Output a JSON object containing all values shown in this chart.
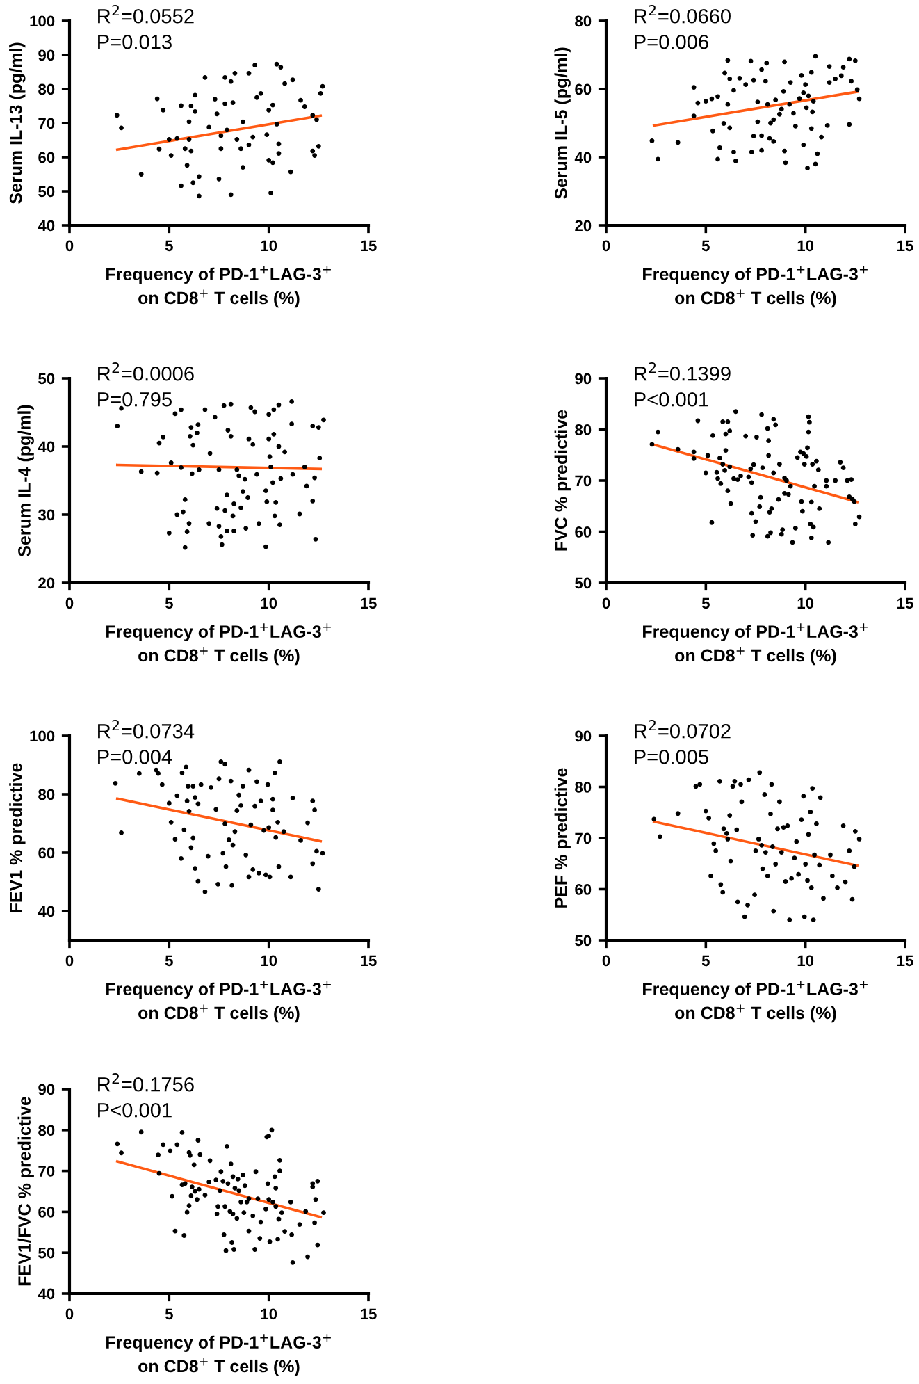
{
  "chart_data": [
    {
      "type": "scatter",
      "ylabel": "Serum IL-13 (pg/ml)",
      "xlabel": "Frequency of PD-1$^{+}$LAG-3$^{+}$\non CD8$^{+}$ T cells (%)",
      "annotations": [
        "R$^{2}$=0.0552",
        "P=0.013"
      ],
      "xlim": [
        0,
        15
      ],
      "xticks": [
        0,
        5,
        10,
        15
      ],
      "ylim": [
        40,
        100
      ],
      "yticks": [
        40,
        50,
        60,
        70,
        80,
        90,
        100
      ],
      "series": [
        {
          "color": "#000000",
          "marker": "circle",
          "x": [
            2.38,
            2.6,
            3.6,
            4.4,
            4.5,
            4.7,
            5.0,
            5.1,
            5.4,
            5.6,
            5.6,
            5.8,
            5.9,
            6.0,
            6.0,
            6.1,
            6.1,
            6.2,
            6.3,
            6.3,
            6.5,
            6.5,
            6.8,
            7.0,
            7.3,
            7.4,
            7.5,
            7.6,
            7.6,
            7.8,
            7.8,
            7.9,
            8.1,
            8.1,
            8.2,
            8.3,
            8.4,
            8.6,
            8.7,
            8.7,
            9.0,
            9.0,
            9.2,
            9.3,
            9.4,
            9.6,
            9.9,
            10.0,
            10.0,
            10.1,
            10.2,
            10.2,
            10.4,
            10.4,
            10.5,
            10.6,
            10.5,
            10.8,
            11.1,
            11.2,
            11.6,
            11.8,
            12.2,
            12.3,
            12.2,
            12.4,
            12.5,
            12.6,
            12.7
          ],
          "values": [
            72.3,
            68.6,
            55,
            77.1,
            62.4,
            73.8,
            65.2,
            60.5,
            65.5,
            75.1,
            51.6,
            62.5,
            57.6,
            70.4,
            65.2,
            61.8,
            75,
            52.5,
            78.2,
            73.4,
            48.6,
            54.3,
            83.4,
            68.8,
            77,
            72.7,
            53.6,
            62.5,
            66.3,
            83.4,
            75.7,
            68,
            82.2,
            49,
            76,
            84.6,
            65.2,
            62.5,
            70.4,
            57,
            63.6,
            84.6,
            65.9,
            87,
            77.5,
            78.7,
            66.6,
            73.8,
            59.1,
            49.5,
            75.3,
            58.4,
            87.3,
            69.7,
            63.9,
            86.4,
            61.1,
            81.6,
            55.7,
            82.7,
            76.7,
            74.8,
            61.8,
            60.5,
            72.3,
            71,
            63.2,
            78.7,
            80.8
          ]
        },
        {
          "type": "line",
          "color": "#ff5a14",
          "x": [
            2.4,
            12.6
          ],
          "values": [
            62.2,
            72.2
          ]
        }
      ]
    },
    {
      "type": "scatter",
      "ylabel": "Serum IL-5 (pg/ml)",
      "xlabel": "Frequency of PD-1$^{+}$LAG-3$^{+}$\non CD8$^{+}$ T cells (%)",
      "annotations": [
        "R$^{2}$=0.0660",
        "P=0.006"
      ],
      "xlim": [
        0,
        15
      ],
      "xticks": [
        0,
        5,
        10,
        15
      ],
      "ylim": [
        20,
        80
      ],
      "yticks": [
        20,
        40,
        60,
        80
      ],
      "series": [
        {
          "color": "#000000",
          "marker": "circle",
          "x": [
            2.3,
            2.6,
            3.6,
            4.4,
            4.4,
            4.6,
            5.0,
            5.3,
            5.35,
            5.6,
            5.6,
            5.7,
            5.9,
            5.95,
            6.1,
            6.1,
            6.2,
            6.2,
            6.4,
            6.4,
            6.5,
            6.7,
            7.0,
            7.26,
            7.3,
            7.4,
            7.4,
            7.6,
            7.6,
            7.8,
            7.8,
            7.8,
            8.0,
            8.05,
            8.1,
            8.2,
            8.25,
            8.4,
            8.4,
            8.5,
            8.7,
            8.8,
            8.9,
            8.95,
            8.95,
            9.0,
            9.2,
            9.25,
            9.4,
            9.5,
            9.7,
            9.8,
            9.9,
            9.9,
            10.0,
            10.05,
            10.1,
            10.15,
            10.3,
            10.3,
            10.35,
            10.4,
            10.5,
            10.5,
            10.6,
            10.8,
            11.1,
            11.2,
            11.2,
            11.5,
            11.8,
            11.9,
            12.2,
            12.2,
            12.3,
            12.5,
            12.6,
            12.7
          ],
          "values": [
            44.8,
            39.4,
            44.3,
            60.5,
            52.1,
            55.9,
            56.4,
            57.1,
            47.7,
            39.4,
            57.8,
            42.8,
            49.9,
            64.7,
            68.4,
            55.5,
            48.6,
            63,
            59.6,
            41.5,
            38.9,
            63.2,
            61.3,
            68.2,
            41.5,
            62.6,
            46.2,
            50.4,
            56.2,
            42,
            46.3,
            65.7,
            62.3,
            67.6,
            55.5,
            45.5,
            50,
            44.6,
            51,
            56.8,
            52.6,
            54.1,
            59.3,
            68,
            41.8,
            38.4,
            55.5,
            61.9,
            52.9,
            49.1,
            57.2,
            64,
            58.9,
            43.6,
            61.3,
            54.5,
            36.8,
            58,
            48.4,
            64.9,
            53.3,
            56.4,
            38,
            69.6,
            41,
            45.9,
            49.3,
            66.6,
            61.9,
            63,
            63.9,
            66.4,
            49.6,
            68.8,
            62.3,
            68.3,
            59.8,
            57.1
          ]
        },
        {
          "type": "line",
          "color": "#ff5a14",
          "x": [
            2.4,
            12.6
          ],
          "values": [
            49.3,
            59.2
          ]
        }
      ]
    },
    {
      "type": "scatter",
      "ylabel": "Serum IL-4 (pg/ml)",
      "xlabel": "Frequency of PD-1$^{+}$LAG-3$^{+}$\non CD8$^{+}$ T cells (%)",
      "annotations": [
        "R$^{2}$=0.0006",
        "P=0.795"
      ],
      "xlim": [
        0,
        15
      ],
      "xticks": [
        0,
        5,
        10,
        15
      ],
      "ylim": [
        20,
        50
      ],
      "yticks": [
        20,
        30,
        40,
        50
      ],
      "series": [
        {
          "color": "#000000",
          "marker": "circle",
          "x": [
            2.4,
            2.6,
            3.6,
            4.4,
            4.5,
            4.7,
            5.0,
            5.1,
            5.3,
            5.4,
            5.6,
            5.6,
            5.7,
            5.8,
            5.8,
            5.9,
            6.0,
            6.05,
            6.1,
            6.15,
            6.2,
            6.4,
            6.45,
            6.5,
            6.8,
            7.0,
            7.05,
            7.3,
            7.4,
            7.5,
            7.5,
            7.6,
            7.65,
            7.75,
            7.8,
            7.9,
            7.9,
            7.95,
            8.1,
            8.1,
            8.2,
            8.25,
            8.25,
            8.4,
            8.5,
            8.6,
            8.7,
            8.8,
            8.85,
            8.95,
            9.0,
            9.1,
            9.2,
            9.3,
            9.4,
            9.5,
            9.85,
            9.85,
            9.9,
            10.0,
            10.0,
            10.05,
            10.1,
            10.2,
            10.25,
            10.25,
            10.3,
            10.35,
            10.5,
            10.5,
            10.55,
            10.6,
            10.8,
            11.15,
            11.15,
            11.2,
            11.55,
            11.8,
            11.9,
            12.2,
            12.2,
            12.3,
            12.35,
            12.5,
            12.55,
            12.75
          ],
          "values": [
            43.0,
            45.6,
            36.3,
            36.1,
            40.5,
            41.4,
            27.3,
            37.6,
            44.8,
            30.0,
            45.4,
            36.9,
            30.4,
            32.2,
            25.2,
            27.5,
            28.7,
            41.5,
            42.8,
            36.0,
            40.2,
            42.0,
            43.2,
            36.6,
            45.4,
            28.7,
            39.0,
            44.3,
            30.9,
            36.6,
            28.3,
            26.8,
            25.6,
            46.0,
            30.6,
            32.9,
            27.6,
            42.4,
            46.2,
            41.5,
            29.8,
            27.6,
            31.6,
            36.6,
            35.7,
            31.0,
            33.4,
            35.2,
            28.0,
            32.5,
            41.1,
            45.7,
            40.3,
            45.1,
            35.9,
            28.7,
            33.5,
            25.3,
            31.9,
            44.7,
            41.1,
            38.5,
            37.0,
            34.7,
            45.4,
            41.8,
            29.8,
            31.8,
            40.0,
            46.1,
            28.5,
            35.3,
            39.2,
            46.6,
            43.3,
            35.9,
            30.1,
            37.0,
            34.2,
            43.0,
            32.0,
            35.4,
            26.4,
            42.8,
            38.3,
            43.9
          ]
        },
        {
          "type": "line",
          "color": "#ff5a14",
          "x": [
            2.4,
            12.6
          ],
          "values": [
            37.3,
            36.7
          ]
        }
      ]
    },
    {
      "type": "scatter",
      "ylabel": "FVC % predictive",
      "xlabel": "Frequency of PD-1$^{+}$LAG-3$^{+}$\non CD8$^{+}$ T cells (%)",
      "annotations": [
        "R$^{2}$=0.1399",
        "P<0.001"
      ],
      "xlim": [
        0,
        15
      ],
      "xticks": [
        0,
        5,
        10,
        15
      ],
      "ylim": [
        50,
        90
      ],
      "yticks": [
        50,
        60,
        70,
        80,
        90
      ],
      "series": [
        {
          "color": "#000000",
          "marker": "circle",
          "x": [
            2.3,
            2.6,
            3.6,
            4.4,
            4.4,
            4.6,
            5.0,
            5.1,
            5.3,
            5.35,
            5.55,
            5.6,
            5.7,
            5.75,
            5.85,
            5.85,
            5.95,
            6.0,
            6.0,
            6.1,
            6.1,
            6.2,
            6.2,
            6.25,
            6.4,
            6.5,
            6.6,
            6.75,
            7.0,
            7.15,
            7.25,
            7.3,
            7.3,
            7.35,
            7.4,
            7.5,
            7.55,
            7.7,
            7.75,
            7.8,
            7.85,
            8.1,
            8.1,
            8.15,
            8.15,
            8.2,
            8.25,
            8.3,
            8.4,
            8.4,
            8.5,
            8.65,
            8.7,
            8.8,
            8.85,
            8.95,
            8.95,
            9.05,
            9.15,
            9.25,
            9.35,
            9.5,
            9.6,
            9.75,
            9.8,
            9.85,
            9.9,
            9.95,
            10.05,
            10.1,
            10.15,
            10.15,
            10.2,
            10.25,
            10.3,
            10.3,
            10.35,
            10.4,
            10.45,
            10.55,
            10.65,
            10.7,
            11.05,
            11.05,
            11.15,
            11.5,
            11.75,
            11.9,
            12.1,
            12.2,
            12.3,
            12.35,
            12.45,
            12.5,
            12.7
          ],
          "values": [
            77.1,
            79.5,
            76.1,
            75.6,
            74.3,
            81.7,
            71.5,
            74.9,
            61.8,
            78.8,
            71.6,
            70.4,
            74.4,
            69.4,
            81.5,
            73.2,
            72.0,
            75.9,
            79.1,
            81.5,
            68.0,
            72.7,
            79.7,
            65.5,
            70.4,
            83.5,
            70.2,
            70.9,
            78.7,
            70.7,
            72.3,
            63.6,
            69.6,
            59.3,
            73.1,
            62.0,
            78.5,
            64.9,
            66.7,
            82.9,
            72.5,
            80.2,
            59.1,
            74.9,
            77.8,
            63.8,
            59.8,
            64.5,
            71.5,
            82.0,
            80.9,
            66.3,
            73.2,
            59.5,
            60.4,
            70.5,
            67.5,
            70.0,
            67.3,
            68.9,
            57.9,
            60.7,
            74.5,
            75.6,
            65.9,
            64.0,
            75.3,
            73.2,
            74.7,
            76.4,
            79.5,
            82.5,
            81.4,
            61.5,
            65.8,
            58.8,
            73.2,
            60.9,
            68.9,
            73.8,
            72.1,
            64.5,
            70.0,
            68.9,
            57.9,
            70.0,
            73.6,
            72.5,
            70.0,
            66.8,
            70.2,
            66.4,
            65.9,
            61.5,
            62.9
          ]
        },
        {
          "type": "line",
          "color": "#ff5a14",
          "x": [
            2.4,
            12.6
          ],
          "values": [
            77.0,
            65.8
          ]
        }
      ]
    },
    {
      "type": "scatter",
      "ylabel": "FEV1 % predictive",
      "xlabel": "Frequency of PD-1$^{+}$LAG-3$^{+}$\non CD8$^{+}$ T cells (%)",
      "annotations": [
        "R$^{2}$=0.0734",
        "P=0.004"
      ],
      "xlim": [
        0,
        15
      ],
      "xticks": [
        0,
        5,
        10,
        15
      ],
      "ylim": [
        30,
        100
      ],
      "yticks": [
        40,
        60,
        80,
        100
      ],
      "series": [
        {
          "color": "#000000",
          "marker": "circle",
          "x": [
            2.3,
            2.6,
            3.5,
            4.35,
            4.45,
            4.65,
            5.0,
            5.1,
            5.3,
            5.4,
            5.6,
            5.65,
            5.75,
            5.85,
            5.9,
            5.95,
            6.0,
            6.1,
            6.2,
            6.2,
            6.3,
            6.3,
            6.45,
            6.45,
            6.6,
            6.8,
            6.95,
            7.1,
            7.35,
            7.45,
            7.5,
            7.6,
            7.7,
            7.8,
            7.8,
            7.85,
            8.0,
            8.1,
            8.15,
            8.2,
            8.3,
            8.4,
            8.5,
            8.6,
            8.7,
            8.85,
            9.0,
            9.0,
            9.1,
            9.2,
            9.3,
            9.4,
            9.5,
            9.6,
            9.75,
            9.85,
            9.95,
            10.0,
            10.05,
            10.2,
            10.2,
            10.3,
            10.35,
            10.45,
            10.5,
            10.55,
            10.75,
            11.1,
            11.2,
            11.6,
            11.95,
            12.2,
            12.2,
            12.3,
            12.4,
            12.5,
            12.7
          ],
          "values": [
            83.7,
            66.8,
            87.1,
            88.3,
            87.1,
            83.3,
            76.9,
            70.4,
            64.6,
            79.5,
            58.0,
            87.3,
            67.8,
            89.3,
            77.7,
            82.7,
            74.2,
            61.7,
            65.0,
            82.7,
            78.9,
            54.6,
            76.7,
            50.2,
            83.3,
            46.6,
            58.8,
            82.3,
            74.8,
            49.2,
            85.3,
            91.1,
            59.8,
            90.3,
            69.9,
            55.2,
            64.4,
            84.5,
            48.8,
            62.6,
            67.2,
            74.4,
            79.7,
            76.1,
            82.7,
            59.2,
            51.7,
            88.3,
            69.5,
            54.2,
            75.9,
            84.3,
            53.0,
            77.7,
            67.6,
            52.4,
            83.3,
            68.6,
            51.7,
            78.3,
            74.6,
            87.3,
            65.2,
            70.4,
            55.2,
            91.1,
            67.2,
            51.7,
            78.7,
            64.2,
            70.2,
            77.7,
            56.2,
            74.6,
            60.5,
            47.5,
            59.8
          ]
        },
        {
          "type": "line",
          "color": "#ff5a14",
          "x": [
            2.4,
            12.6
          ],
          "values": [
            78.5,
            63.9
          ]
        }
      ]
    },
    {
      "type": "scatter",
      "ylabel": "PEF % predictive",
      "xlabel": "Frequency of PD-1$^{+}$LAG-3$^{+}$\non CD8$^{+}$ T cells (%)",
      "annotations": [
        "R$^{2}$=0.0702",
        "P=0.005"
      ],
      "xlim": [
        0,
        15
      ],
      "xticks": [
        0,
        5,
        10,
        15
      ],
      "ylim": [
        50,
        90
      ],
      "yticks": [
        50,
        60,
        70,
        80,
        90
      ],
      "series": [
        {
          "color": "#000000",
          "marker": "circle",
          "x": [
            2.4,
            2.7,
            3.6,
            4.5,
            4.7,
            5.0,
            5.15,
            5.25,
            5.4,
            5.5,
            5.7,
            5.75,
            5.85,
            5.9,
            6.05,
            6.1,
            6.2,
            6.25,
            6.35,
            6.45,
            6.55,
            6.6,
            6.75,
            6.8,
            6.95,
            7.1,
            7.15,
            7.45,
            7.5,
            7.65,
            7.7,
            7.8,
            7.85,
            7.95,
            8.0,
            8.1,
            8.25,
            8.3,
            8.35,
            8.4,
            8.5,
            8.6,
            8.7,
            8.8,
            8.9,
            9.0,
            9.1,
            9.2,
            9.3,
            9.45,
            9.55,
            9.65,
            9.8,
            9.9,
            9.95,
            10.0,
            10.1,
            10.15,
            10.25,
            10.3,
            10.35,
            10.4,
            10.45,
            10.55,
            10.7,
            10.75,
            10.9,
            11.25,
            11.35,
            11.6,
            11.9,
            12.0,
            12.2,
            12.35,
            12.45,
            12.5,
            12.7
          ],
          "values": [
            73.7,
            70.3,
            74.8,
            80.1,
            80.5,
            75.3,
            73.9,
            62.6,
            68.9,
            67.5,
            81.1,
            60.9,
            59.4,
            71.8,
            70.9,
            69.8,
            74.4,
            65.5,
            80.1,
            81.1,
            71.6,
            57.5,
            80.5,
            77.1,
            54.6,
            56.9,
            81.4,
            58.9,
            67.5,
            69.8,
            82.8,
            68.6,
            64.0,
            78.5,
            67.2,
            62.6,
            74.7,
            80.5,
            68.3,
            55.7,
            64.9,
            71.8,
            77.1,
            67.2,
            72.1,
            61.5,
            72.4,
            54.0,
            62.1,
            66.1,
            69.3,
            62.9,
            73.6,
            78.2,
            54.6,
            64.9,
            61.7,
            70.7,
            75.1,
            60.3,
            79.7,
            54.0,
            66.7,
            72.8,
            64.7,
            77.9,
            58.2,
            66.7,
            62.6,
            60.3,
            72.4,
            61.4,
            67.5,
            58.0,
            64.4,
            71.3,
            69.8
          ]
        },
        {
          "type": "line",
          "color": "#ff5a14",
          "x": [
            2.4,
            12.6
          ],
          "values": [
            73.2,
            64.6
          ]
        }
      ]
    },
    {
      "type": "scatter",
      "ylabel": "FEV1/FVC % predictive",
      "xlabel": "Frequency of PD-1$^{+}$LAG-3$^{+}$\non CD8$^{+}$ T cells (%)",
      "annotations": [
        "R$^{2}$=0.1756",
        "P<0.001"
      ],
      "xlim": [
        0,
        15
      ],
      "xticks": [
        0,
        5,
        10,
        15
      ],
      "ylim": [
        40,
        90
      ],
      "yticks": [
        40,
        50,
        60,
        70,
        80,
        90
      ],
      "series": [
        {
          "color": "#000000",
          "marker": "circle",
          "x": [
            2.4,
            2.6,
            3.6,
            4.45,
            4.5,
            4.7,
            5.05,
            5.15,
            5.3,
            5.4,
            5.65,
            5.65,
            5.75,
            5.8,
            5.9,
            6.0,
            6.0,
            6.05,
            6.1,
            6.15,
            6.25,
            6.3,
            6.4,
            6.45,
            6.55,
            6.5,
            6.8,
            7.0,
            7.05,
            7.35,
            7.4,
            7.45,
            7.55,
            7.6,
            7.7,
            7.75,
            7.8,
            7.85,
            7.9,
            7.95,
            8.05,
            8.1,
            8.15,
            8.2,
            8.2,
            8.25,
            8.3,
            8.4,
            8.45,
            8.5,
            8.6,
            8.7,
            8.75,
            8.8,
            8.9,
            9.0,
            9.0,
            9.2,
            9.3,
            9.35,
            9.45,
            9.55,
            9.6,
            9.85,
            9.9,
            9.95,
            10.0,
            10.0,
            10.05,
            10.15,
            10.2,
            10.3,
            10.35,
            10.35,
            10.45,
            10.5,
            10.55,
            10.55,
            10.65,
            10.8,
            11.1,
            11.15,
            11.2,
            11.55,
            11.85,
            11.95,
            12.2,
            12.2,
            12.3,
            12.35,
            12.45,
            12.45,
            12.75
          ],
          "values": [
            76.6,
            74.4,
            79.5,
            73.9,
            69.4,
            76.4,
            74.9,
            63.8,
            55.3,
            76.4,
            79.4,
            66.6,
            54.2,
            66.9,
            59.9,
            61.5,
            74.5,
            73.8,
            63.9,
            66.1,
            71.5,
            65.0,
            63.0,
            77.5,
            74.0,
            65.5,
            64.1,
            67.3,
            72.5,
            67.8,
            59.5,
            61.3,
            65.2,
            69.8,
            67.5,
            54.4,
            61.3,
            50.5,
            76.0,
            66.9,
            60.1,
            71.7,
            52.5,
            68.6,
            59.5,
            50.8,
            65.8,
            58.4,
            68.0,
            65.2,
            62.4,
            69.0,
            59.8,
            66.4,
            62.4,
            55.3,
            63.2,
            59.0,
            50.8,
            69.8,
            63.2,
            53.5,
            57.5,
            60.7,
            78.3,
            66.9,
            78.5,
            63.0,
            52.7,
            80.0,
            62.4,
            68.6,
            61.3,
            65.8,
            53.3,
            58.2,
            70.0,
            72.6,
            59.8,
            55.2,
            62.4,
            54.4,
            47.6,
            56.9,
            60.1,
            49.0,
            66.1,
            66.9,
            57.3,
            63.0,
            67.5,
            51.9,
            59.8
          ]
        },
        {
          "type": "line",
          "color": "#ff5a14",
          "x": [
            2.4,
            12.6
          ],
          "values": [
            72.3,
            58.7
          ]
        }
      ]
    }
  ]
}
